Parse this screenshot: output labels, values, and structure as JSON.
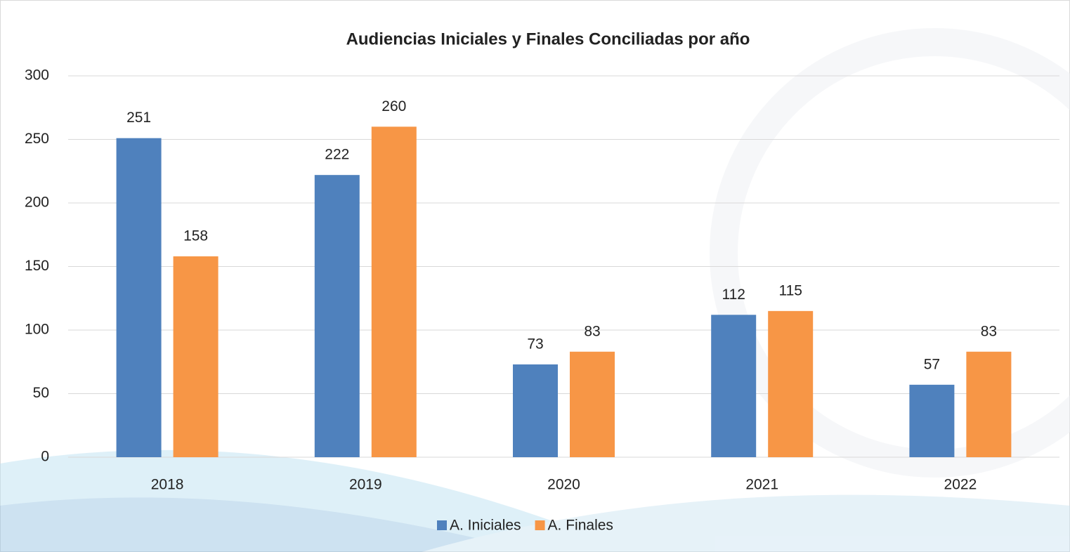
{
  "chart_data": {
    "type": "bar",
    "title": "Audiencias Iniciales y Finales Conciliadas por año",
    "categories": [
      "2018",
      "2019",
      "2020",
      "2021",
      "2022"
    ],
    "series": [
      {
        "name": "A. Iniciales",
        "color": "#4f81bd",
        "values": [
          251,
          222,
          73,
          112,
          57
        ]
      },
      {
        "name": "A. Finales",
        "color": "#f79646",
        "values": [
          158,
          260,
          83,
          115,
          83
        ]
      }
    ],
    "ylim": [
      0,
      300
    ],
    "yticks": [
      0,
      50,
      100,
      150,
      200,
      250,
      300
    ],
    "grid": true,
    "legend": "bottom"
  }
}
